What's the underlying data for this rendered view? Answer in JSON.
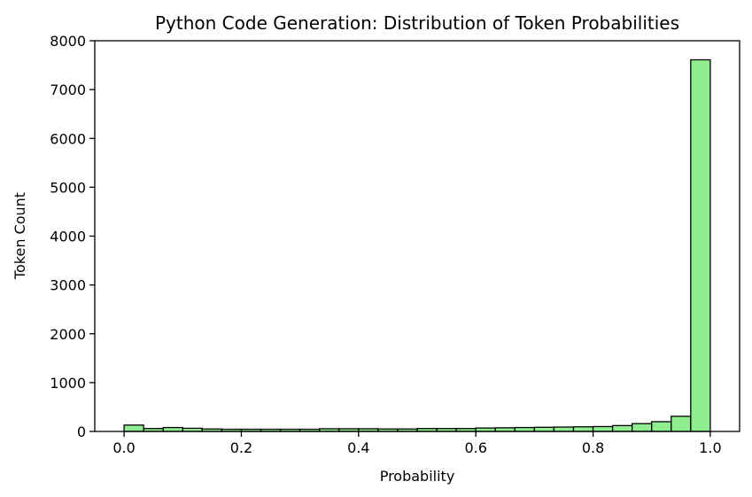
{
  "chart_data": {
    "type": "bar",
    "title": "Python Code Generation: Distribution of Token Probabilities",
    "xlabel": "Probability",
    "ylabel": "Token Count",
    "xlim": [
      -0.05,
      1.05
    ],
    "ylim": [
      0,
      8000
    ],
    "x_ticks": [
      0.0,
      0.2,
      0.4,
      0.6,
      0.8,
      1.0
    ],
    "x_tick_labels": [
      "0.0",
      "0.2",
      "0.4",
      "0.6",
      "0.8",
      "1.0"
    ],
    "y_ticks": [
      0,
      1000,
      2000,
      3000,
      4000,
      5000,
      6000,
      7000,
      8000
    ],
    "y_tick_labels": [
      "0",
      "1000",
      "2000",
      "3000",
      "4000",
      "5000",
      "6000",
      "7000",
      "8000"
    ],
    "grid": false,
    "bin_start": 0.0,
    "bin_width": 0.0333,
    "values": [
      130,
      60,
      80,
      65,
      50,
      45,
      45,
      45,
      45,
      45,
      55,
      55,
      55,
      50,
      50,
      60,
      60,
      60,
      70,
      75,
      80,
      85,
      90,
      95,
      100,
      120,
      160,
      200,
      310,
      7610
    ],
    "bar_color": "#90ee90",
    "edge_color": "#000000"
  }
}
